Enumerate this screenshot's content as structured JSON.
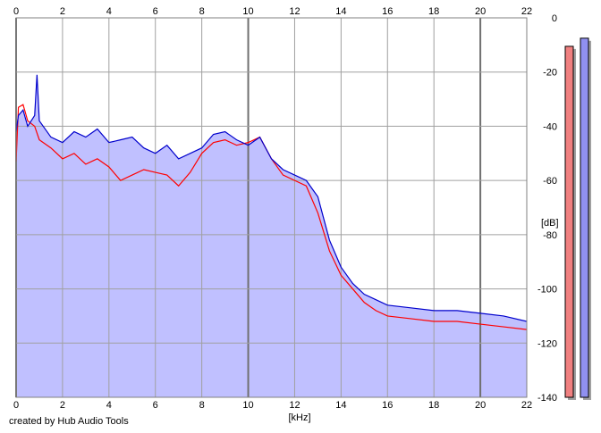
{
  "chart_data": {
    "type": "line",
    "xlabel": "[kHz]",
    "ylabel": "[dB]",
    "xlim": [
      0,
      22
    ],
    "ylim": [
      -140,
      0
    ],
    "x_ticks": [
      "0",
      "2",
      "4",
      "6",
      "8",
      "10",
      "12",
      "14",
      "16",
      "18",
      "20",
      "22"
    ],
    "y_ticks": [
      "0",
      "-20",
      "-40",
      "-60",
      "-80",
      "-100",
      "-120",
      "-140"
    ],
    "grid": true,
    "area_fill": "#c0c0ff",
    "series": [
      {
        "color": "#ff0000",
        "x": [
          0,
          0.1,
          0.3,
          0.5,
          0.8,
          1.0,
          1.5,
          2.0,
          2.5,
          3.0,
          3.5,
          4.0,
          4.5,
          5.0,
          5.5,
          6.0,
          6.5,
          7.0,
          7.5,
          8.0,
          8.5,
          9.0,
          9.5,
          10.0,
          10.5,
          11.0,
          11.5,
          12.0,
          12.5,
          13.0,
          13.5,
          14.0,
          14.5,
          15.0,
          15.5,
          16.0,
          17.0,
          18.0,
          19.0,
          20.0,
          21.0,
          22.0
        ],
        "y": [
          -53,
          -33,
          -32,
          -38,
          -40,
          -45,
          -48,
          -52,
          -50,
          -54,
          -52,
          -55,
          -60,
          -58,
          -56,
          -57,
          -58,
          -62,
          -57,
          -50,
          -46,
          -45,
          -47,
          -46,
          -44,
          -52,
          -58,
          -60,
          -62,
          -72,
          -86,
          -95,
          -100,
          -105,
          -108,
          -110,
          -111,
          -112,
          -112,
          -113,
          -114,
          -115
        ]
      },
      {
        "color": "#0000cc",
        "x": [
          0,
          0.1,
          0.3,
          0.5,
          0.8,
          0.9,
          1.0,
          1.5,
          2.0,
          2.5,
          3.0,
          3.5,
          4.0,
          4.5,
          5.0,
          5.5,
          6.0,
          6.5,
          7.0,
          7.5,
          8.0,
          8.5,
          9.0,
          9.5,
          10.0,
          10.5,
          11.0,
          11.5,
          12.0,
          12.5,
          13.0,
          13.5,
          14.0,
          14.5,
          15.0,
          15.5,
          16.0,
          17.0,
          18.0,
          19.0,
          20.0,
          21.0,
          22.0
        ],
        "y": [
          -42,
          -36,
          -34,
          -40,
          -36,
          -21,
          -38,
          -44,
          -46,
          -42,
          -44,
          -41,
          -46,
          -45,
          -44,
          -48,
          -50,
          -47,
          -52,
          -50,
          -48,
          -43,
          -42,
          -45,
          -47,
          -44,
          -52,
          -56,
          -58,
          -60,
          -66,
          -82,
          -92,
          -98,
          -102,
          -104,
          -106,
          -107,
          -108,
          -108,
          -109,
          -110,
          -112
        ]
      }
    ],
    "level_bars": [
      {
        "color": "#f08080",
        "value": -10.5
      },
      {
        "color": "#9090f0",
        "value": -7.5
      }
    ]
  },
  "credit": "created by Hub Audio Tools"
}
